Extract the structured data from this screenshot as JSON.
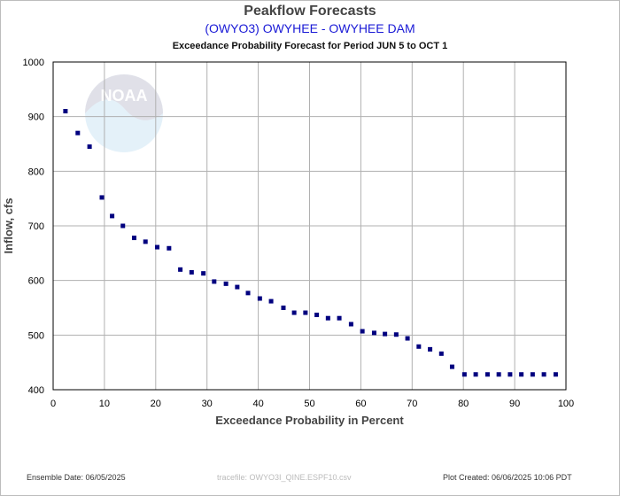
{
  "header": {
    "title": "Peakflow Forecasts",
    "subtitle": "(OWYO3) OWYHEE - OWYHEE DAM",
    "period": "Exceedance Probability Forecast for Period JUN 5 to OCT 1"
  },
  "watermark": {
    "text": "NOAA",
    "icon": "noaa-logo"
  },
  "footer": {
    "ensemble_date": "Ensemble Date: 06/05/2025",
    "tracefile": "tracefile: OWYO3I_QINE.ESPF10.csv",
    "plot_created": "Plot Created: 06/06/2025 10:06 PDT"
  },
  "colors": {
    "marker": "#00007f",
    "grid": "#b0b0b0",
    "axis": "#000000",
    "subtitle": "#1a1ad6"
  },
  "chart_data": {
    "type": "scatter",
    "title": "Peakflow Forecasts",
    "subtitle": "(OWYO3) OWYHEE - OWYHEE DAM",
    "xlabel": "Exceedance Probability in Percent",
    "ylabel": "Inflow, cfs",
    "xlim": [
      0,
      100
    ],
    "ylim": [
      400,
      1000
    ],
    "xticks": [
      "0",
      "10",
      "20",
      "30",
      "40",
      "50",
      "60",
      "70",
      "80",
      "90",
      "100"
    ],
    "yticks": [
      "400",
      "500",
      "600",
      "700",
      "800",
      "900",
      "1000"
    ],
    "grid": true,
    "x": [
      2.4,
      4.8,
      7.1,
      9.5,
      11.5,
      13.6,
      15.8,
      18,
      20.3,
      22.6,
      24.8,
      27,
      29.3,
      31.4,
      33.7,
      35.9,
      38,
      40.3,
      42.5,
      44.9,
      47,
      49.2,
      51.4,
      53.6,
      55.8,
      58.1,
      60.3,
      62.6,
      64.7,
      66.9,
      69.1,
      71.3,
      73.5,
      75.7,
      77.8,
      80.2,
      82.4,
      84.7,
      86.9,
      89.1,
      91.3,
      93.5,
      95.7,
      98.0
    ],
    "y": [
      910,
      870,
      845,
      752,
      718,
      700,
      678,
      671,
      661,
      659,
      620,
      615,
      613,
      598,
      594,
      588,
      577,
      567,
      562,
      550,
      541,
      541,
      537,
      531,
      531,
      520,
      507,
      504,
      502,
      501,
      494,
      479,
      474,
      466,
      442,
      428,
      428,
      428,
      428,
      428,
      428,
      428,
      428,
      428
    ]
  }
}
